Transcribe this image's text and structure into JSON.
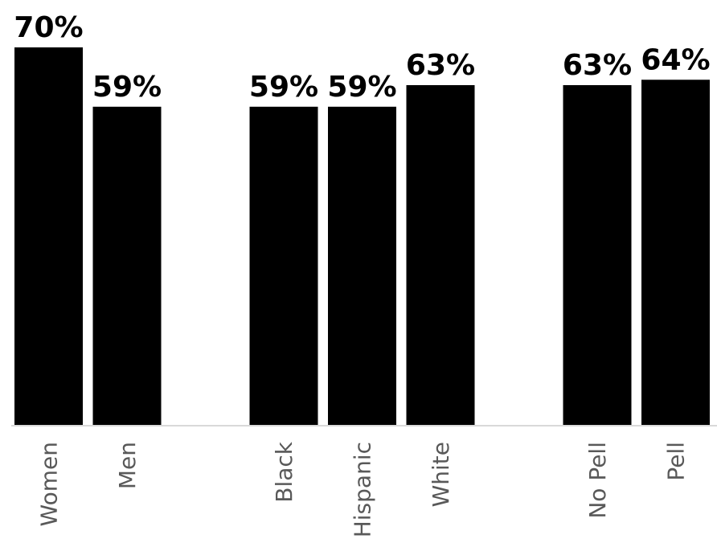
{
  "chart_data": {
    "type": "bar",
    "categories": [
      "Women",
      "Men",
      "Black",
      "Hispanic",
      "White",
      "No Pell",
      "Pell"
    ],
    "values": [
      70,
      59,
      59,
      59,
      63,
      63,
      64
    ],
    "data_labels": [
      "70%",
      "59%",
      "59%",
      "59%",
      "63%",
      "63%",
      "64%"
    ],
    "groups": [
      [
        "Women",
        "Men"
      ],
      [
        "Black",
        "Hispanic",
        "White"
      ],
      [
        "No Pell",
        "Pell"
      ]
    ],
    "unit": "%",
    "title": "",
    "xlabel": "",
    "ylabel": "",
    "ylim": [
      0,
      70
    ],
    "grid": false,
    "legend": "none",
    "colors": {
      "bar": "#000000",
      "value_label": "#000000",
      "category_label": "#595959",
      "axis": "#d9d9d9"
    }
  }
}
